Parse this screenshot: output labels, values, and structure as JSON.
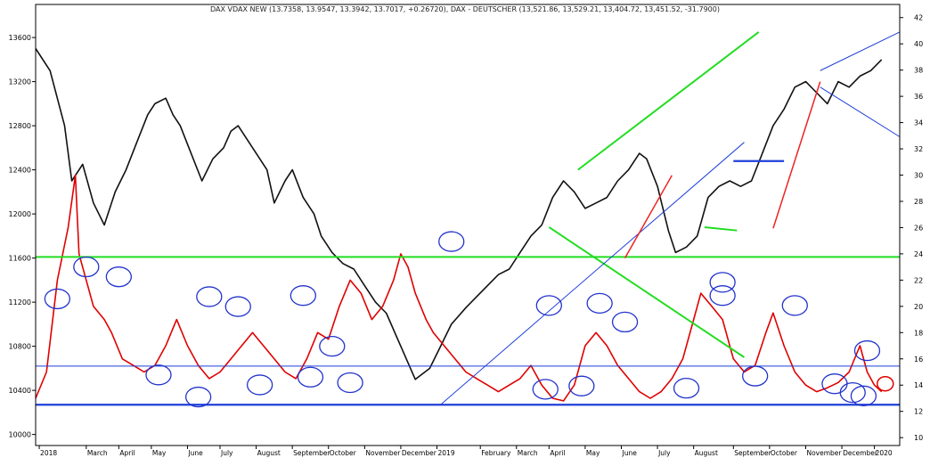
{
  "chart_data": {
    "type": "line",
    "title": "DAX VDAX NEW (13.7358, 13.9547, 13.3942, 13.7017, +0.26720), DAX - DEUTSCHER (13,521.86, 13,529.21, 13,404.72, 13,451.52, -31.7900)",
    "left_axis": {
      "min": 9900,
      "max": 13900,
      "ticks": [
        10000,
        10400,
        10800,
        11200,
        11600,
        12000,
        12400,
        12800,
        13200,
        13600
      ]
    },
    "right_axis": {
      "min": 9.4,
      "max": 43,
      "ticks": [
        10,
        12,
        14,
        16,
        18,
        20,
        22,
        24,
        26,
        28,
        30,
        32,
        34,
        36,
        38,
        40,
        42
      ]
    },
    "x_range": [
      0,
      23.9
    ],
    "month_labels": [
      {
        "t": 0.1,
        "label": "2018"
      },
      {
        "t": 1.4,
        "label": "March"
      },
      {
        "t": 2.3,
        "label": "April"
      },
      {
        "t": 3.2,
        "label": "May"
      },
      {
        "t": 4.2,
        "label": "June"
      },
      {
        "t": 5.1,
        "label": "July"
      },
      {
        "t": 6.1,
        "label": "August"
      },
      {
        "t": 7.1,
        "label": "September"
      },
      {
        "t": 8.1,
        "label": "October"
      },
      {
        "t": 9.1,
        "label": "November"
      },
      {
        "t": 10.1,
        "label": "December"
      },
      {
        "t": 11.1,
        "label": "2019"
      },
      {
        "t": 12.3,
        "label": "February"
      },
      {
        "t": 13.3,
        "label": "March"
      },
      {
        "t": 14.2,
        "label": "April"
      },
      {
        "t": 15.2,
        "label": "May"
      },
      {
        "t": 16.2,
        "label": "June"
      },
      {
        "t": 17.2,
        "label": "July"
      },
      {
        "t": 18.2,
        "label": "August"
      },
      {
        "t": 19.3,
        "label": "September"
      },
      {
        "t": 20.3,
        "label": "October"
      },
      {
        "t": 21.3,
        "label": "November"
      },
      {
        "t": 22.3,
        "label": "December"
      },
      {
        "t": 23.2,
        "label": "2020"
      }
    ],
    "series": [
      {
        "axis": "left",
        "color": "#111111",
        "points": [
          [
            0,
            13500
          ],
          [
            0.4,
            13300
          ],
          [
            0.8,
            12800
          ],
          [
            1.0,
            12300
          ],
          [
            1.3,
            12450
          ],
          [
            1.6,
            12100
          ],
          [
            1.9,
            11900
          ],
          [
            2.2,
            12200
          ],
          [
            2.5,
            12400
          ],
          [
            2.8,
            12650
          ],
          [
            3.1,
            12900
          ],
          [
            3.3,
            13000
          ],
          [
            3.6,
            13050
          ],
          [
            3.8,
            12900
          ],
          [
            4.0,
            12800
          ],
          [
            4.3,
            12550
          ],
          [
            4.6,
            12300
          ],
          [
            4.9,
            12500
          ],
          [
            5.2,
            12600
          ],
          [
            5.4,
            12750
          ],
          [
            5.6,
            12800
          ],
          [
            5.9,
            12650
          ],
          [
            6.1,
            12550
          ],
          [
            6.4,
            12400
          ],
          [
            6.6,
            12100
          ],
          [
            6.9,
            12300
          ],
          [
            7.1,
            12400
          ],
          [
            7.4,
            12150
          ],
          [
            7.7,
            12000
          ],
          [
            7.9,
            11800
          ],
          [
            8.2,
            11650
          ],
          [
            8.5,
            11550
          ],
          [
            8.8,
            11500
          ],
          [
            9.1,
            11350
          ],
          [
            9.4,
            11200
          ],
          [
            9.7,
            11100
          ],
          [
            10.1,
            10800
          ],
          [
            10.5,
            10500
          ],
          [
            10.9,
            10600
          ],
          [
            11.2,
            10800
          ],
          [
            11.5,
            11000
          ],
          [
            11.9,
            11150
          ],
          [
            12.2,
            11250
          ],
          [
            12.5,
            11350
          ],
          [
            12.8,
            11450
          ],
          [
            13.1,
            11500
          ],
          [
            13.4,
            11650
          ],
          [
            13.7,
            11800
          ],
          [
            14.0,
            11900
          ],
          [
            14.3,
            12150
          ],
          [
            14.6,
            12300
          ],
          [
            14.9,
            12200
          ],
          [
            15.2,
            12050
          ],
          [
            15.5,
            12100
          ],
          [
            15.8,
            12150
          ],
          [
            16.1,
            12300
          ],
          [
            16.4,
            12400
          ],
          [
            16.7,
            12550
          ],
          [
            16.9,
            12500
          ],
          [
            17.2,
            12250
          ],
          [
            17.5,
            11850
          ],
          [
            17.7,
            11650
          ],
          [
            18.0,
            11700
          ],
          [
            18.3,
            11800
          ],
          [
            18.6,
            12150
          ],
          [
            18.9,
            12250
          ],
          [
            19.2,
            12300
          ],
          [
            19.5,
            12250
          ],
          [
            19.8,
            12300
          ],
          [
            20.1,
            12550
          ],
          [
            20.4,
            12800
          ],
          [
            20.7,
            12950
          ],
          [
            21.0,
            13150
          ],
          [
            21.3,
            13200
          ],
          [
            21.6,
            13100
          ],
          [
            21.9,
            13000
          ],
          [
            22.2,
            13200
          ],
          [
            22.5,
            13150
          ],
          [
            22.8,
            13250
          ],
          [
            23.1,
            13300
          ],
          [
            23.4,
            13400
          ]
        ]
      },
      {
        "axis": "right",
        "color": "#e00000",
        "points": [
          [
            0,
            13
          ],
          [
            0.3,
            15
          ],
          [
            0.6,
            22
          ],
          [
            0.9,
            26
          ],
          [
            1.1,
            30
          ],
          [
            1.2,
            24
          ],
          [
            1.4,
            22
          ],
          [
            1.6,
            20
          ],
          [
            1.9,
            19
          ],
          [
            2.1,
            18
          ],
          [
            2.4,
            16
          ],
          [
            2.7,
            15.5
          ],
          [
            3.0,
            15
          ],
          [
            3.3,
            15.5
          ],
          [
            3.6,
            17
          ],
          [
            3.9,
            19
          ],
          [
            4.2,
            17
          ],
          [
            4.5,
            15.5
          ],
          [
            4.8,
            14.5
          ],
          [
            5.1,
            15
          ],
          [
            5.4,
            16
          ],
          [
            5.7,
            17
          ],
          [
            6.0,
            18
          ],
          [
            6.3,
            17
          ],
          [
            6.6,
            16
          ],
          [
            6.9,
            15
          ],
          [
            7.2,
            14.5
          ],
          [
            7.5,
            16
          ],
          [
            7.8,
            18
          ],
          [
            8.1,
            17.5
          ],
          [
            8.4,
            20
          ],
          [
            8.7,
            22
          ],
          [
            9.0,
            21
          ],
          [
            9.3,
            19
          ],
          [
            9.6,
            20
          ],
          [
            9.9,
            22
          ],
          [
            10.1,
            24
          ],
          [
            10.3,
            23
          ],
          [
            10.5,
            21
          ],
          [
            10.8,
            19
          ],
          [
            11.0,
            18
          ],
          [
            11.3,
            17
          ],
          [
            11.6,
            16
          ],
          [
            11.9,
            15
          ],
          [
            12.2,
            14.5
          ],
          [
            12.5,
            14
          ],
          [
            12.8,
            13.5
          ],
          [
            13.1,
            14
          ],
          [
            13.4,
            14.5
          ],
          [
            13.7,
            15.5
          ],
          [
            14.0,
            14
          ],
          [
            14.3,
            13
          ],
          [
            14.6,
            12.8
          ],
          [
            14.9,
            14
          ],
          [
            15.2,
            17
          ],
          [
            15.5,
            18
          ],
          [
            15.8,
            17
          ],
          [
            16.1,
            15.5
          ],
          [
            16.4,
            14.5
          ],
          [
            16.7,
            13.5
          ],
          [
            17.0,
            13
          ],
          [
            17.3,
            13.5
          ],
          [
            17.6,
            14.5
          ],
          [
            17.9,
            16
          ],
          [
            18.2,
            19
          ],
          [
            18.4,
            21
          ],
          [
            18.7,
            20
          ],
          [
            19.0,
            19
          ],
          [
            19.3,
            16
          ],
          [
            19.6,
            15
          ],
          [
            19.9,
            15.5
          ],
          [
            20.2,
            18
          ],
          [
            20.4,
            19.5
          ],
          [
            20.7,
            17
          ],
          [
            21.0,
            15
          ],
          [
            21.3,
            14
          ],
          [
            21.6,
            13.5
          ],
          [
            21.9,
            13.8
          ],
          [
            22.2,
            14.2
          ],
          [
            22.5,
            15
          ],
          [
            22.8,
            17
          ],
          [
            23.0,
            15
          ],
          [
            23.2,
            14
          ],
          [
            23.4,
            13.5
          ]
        ]
      }
    ],
    "annotations": {
      "green_lines": [
        {
          "axis": "left",
          "x1": 15.0,
          "y1": 12400,
          "x2": 20.0,
          "y2": 13650
        },
        {
          "axis": "left",
          "x1": 14.2,
          "y1": 11880,
          "x2": 19.6,
          "y2": 10700
        },
        {
          "axis": "left",
          "x1": 18.5,
          "y1": 11880,
          "x2": 19.4,
          "y2": 11850
        },
        {
          "axis": "left",
          "x1": 0,
          "y1": 11610,
          "x2": 23.9,
          "y2": 11610
        }
      ],
      "blue_lines": [
        {
          "axis": "left",
          "x1": 11.2,
          "y1": 10270,
          "x2": 19.6,
          "y2": 12650
        },
        {
          "axis": "left",
          "x1": 21.7,
          "y1": 13300,
          "x2": 23.9,
          "y2": 13650
        },
        {
          "axis": "left",
          "x1": 21.7,
          "y1": 13150,
          "x2": 23.9,
          "y2": 12700
        },
        {
          "axis": "left",
          "x1": 0,
          "y1": 10620,
          "x2": 23.9,
          "y2": 10620
        },
        {
          "axis": "left",
          "x1": 0,
          "y1": 10270,
          "x2": 23.9,
          "y2": 10270
        },
        {
          "axis": "left",
          "x1": 19.3,
          "y1": 12480,
          "x2": 20.7,
          "y2": 12480
        }
      ],
      "red_lines": [
        {
          "axis": "left",
          "x1": 16.3,
          "y1": 11600,
          "x2": 17.6,
          "y2": 12350
        },
        {
          "axis": "left",
          "x1": 20.4,
          "y1": 11870,
          "x2": 21.7,
          "y2": 13200
        }
      ],
      "blue_circles": [
        {
          "t": 0.6,
          "v": 11230
        },
        {
          "t": 1.4,
          "v": 11520
        },
        {
          "t": 2.3,
          "v": 11430
        },
        {
          "t": 3.4,
          "v": 10540
        },
        {
          "t": 4.8,
          "v": 11250
        },
        {
          "t": 4.5,
          "v": 10340
        },
        {
          "t": 5.6,
          "v": 11160
        },
        {
          "t": 6.2,
          "v": 10450
        },
        {
          "t": 7.4,
          "v": 11260
        },
        {
          "t": 7.6,
          "v": 10520
        },
        {
          "t": 8.2,
          "v": 10800
        },
        {
          "t": 8.7,
          "v": 10470
        },
        {
          "t": 11.5,
          "v": 11750
        },
        {
          "t": 14.2,
          "v": 11170
        },
        {
          "t": 14.1,
          "v": 10410
        },
        {
          "t": 15.1,
          "v": 10440
        },
        {
          "t": 15.6,
          "v": 11190
        },
        {
          "t": 16.3,
          "v": 11020
        },
        {
          "t": 18.0,
          "v": 10420
        },
        {
          "t": 19.0,
          "v": 11380
        },
        {
          "t": 19.0,
          "v": 11260
        },
        {
          "t": 19.9,
          "v": 10530
        },
        {
          "t": 21.0,
          "v": 11170
        },
        {
          "t": 22.1,
          "v": 10460
        },
        {
          "t": 22.6,
          "v": 10380
        },
        {
          "t": 22.9,
          "v": 10350
        },
        {
          "t": 23.0,
          "v": 10760
        }
      ],
      "red_circles": [
        {
          "t": 23.5,
          "v": 10460
        }
      ]
    }
  }
}
